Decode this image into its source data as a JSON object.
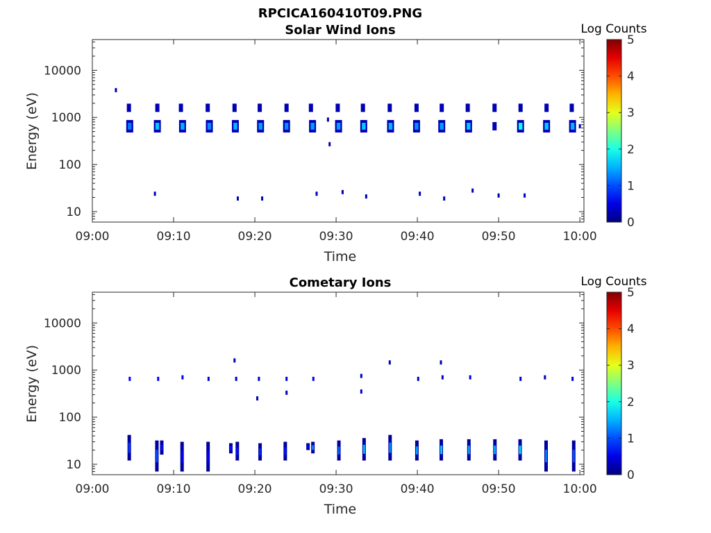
{
  "figure": {
    "file_title": "RPCICA160410T09.PNG"
  },
  "chart_data": [
    {
      "type": "heatmap",
      "title": "Solar Wind Ions",
      "xlabel": "Time",
      "ylabel": "Energy (eV)",
      "x_tick_labels": [
        "09:00",
        "09:10",
        "09:20",
        "09:30",
        "09:40",
        "09:50",
        "10:00"
      ],
      "x_range_minutes": [
        0,
        60.5
      ],
      "y_tick_labels": [
        "10",
        "100",
        "1000",
        "10000"
      ],
      "y_tick_values": [
        10,
        100,
        1000,
        10000
      ],
      "y_scale": "log",
      "y_range_ev": [
        6,
        45000
      ],
      "colorbar": {
        "label": "Log Counts",
        "ticks": [
          "0",
          "1",
          "2",
          "3",
          "4",
          "5"
        ],
        "range": [
          0,
          5
        ],
        "colormap": "jet"
      },
      "blobs": [
        {
          "t": 4.6,
          "e": 650,
          "lc": 1.2
        },
        {
          "t": 4.5,
          "e": 1600,
          "lc": 0.4
        },
        {
          "t": 8.0,
          "e": 650,
          "lc": 1.6
        },
        {
          "t": 8.0,
          "e": 1600,
          "lc": 0.4
        },
        {
          "t": 11.1,
          "e": 650,
          "lc": 1.5
        },
        {
          "t": 10.9,
          "e": 1600,
          "lc": 0.5
        },
        {
          "t": 14.4,
          "e": 650,
          "lc": 1.3
        },
        {
          "t": 14.2,
          "e": 1600,
          "lc": 0.4
        },
        {
          "t": 17.6,
          "e": 650,
          "lc": 1.5
        },
        {
          "t": 17.5,
          "e": 1600,
          "lc": 0.4
        },
        {
          "t": 20.7,
          "e": 650,
          "lc": 1.4
        },
        {
          "t": 20.6,
          "e": 1600,
          "lc": 0.5
        },
        {
          "t": 23.9,
          "e": 650,
          "lc": 1.3
        },
        {
          "t": 23.9,
          "e": 1600,
          "lc": 0.5
        },
        {
          "t": 27.1,
          "e": 650,
          "lc": 1.4
        },
        {
          "t": 26.9,
          "e": 1600,
          "lc": 0.4
        },
        {
          "t": 30.3,
          "e": 650,
          "lc": 1.4
        },
        {
          "t": 30.2,
          "e": 1600,
          "lc": 0.3
        },
        {
          "t": 33.4,
          "e": 650,
          "lc": 1.6
        },
        {
          "t": 33.3,
          "e": 1600,
          "lc": 0.4
        },
        {
          "t": 36.7,
          "e": 650,
          "lc": 1.5
        },
        {
          "t": 36.6,
          "e": 1600,
          "lc": 0.4
        },
        {
          "t": 39.9,
          "e": 650,
          "lc": 1.3
        },
        {
          "t": 39.9,
          "e": 1600,
          "lc": 0.4
        },
        {
          "t": 43.0,
          "e": 650,
          "lc": 1.4
        },
        {
          "t": 43.0,
          "e": 1600,
          "lc": 0.4
        },
        {
          "t": 46.3,
          "e": 650,
          "lc": 1.6
        },
        {
          "t": 46.2,
          "e": 1600,
          "lc": 0.4
        },
        {
          "t": 49.5,
          "e": 650,
          "lc": 0.5
        },
        {
          "t": 49.5,
          "e": 1600,
          "lc": 0.3
        },
        {
          "t": 52.7,
          "e": 650,
          "lc": 1.9
        },
        {
          "t": 52.7,
          "e": 1600,
          "lc": 0.4
        },
        {
          "t": 55.9,
          "e": 650,
          "lc": 1.6
        },
        {
          "t": 55.9,
          "e": 1600,
          "lc": 0.4
        },
        {
          "t": 59.1,
          "e": 650,
          "lc": 1.5
        },
        {
          "t": 59.0,
          "e": 1600,
          "lc": 0.4
        }
      ],
      "specks": [
        {
          "t": 2.9,
          "e": 3800,
          "lc": 0.2
        },
        {
          "t": 29.2,
          "e": 270,
          "lc": 0.2
        },
        {
          "t": 29.0,
          "e": 900,
          "lc": 0.2
        },
        {
          "t": 60.0,
          "e": 650,
          "lc": 0.2
        },
        {
          "t": 7.7,
          "e": 24,
          "lc": 0.3
        },
        {
          "t": 17.9,
          "e": 19,
          "lc": 0.3
        },
        {
          "t": 20.9,
          "e": 19,
          "lc": 0.3
        },
        {
          "t": 27.6,
          "e": 24,
          "lc": 0.3
        },
        {
          "t": 30.8,
          "e": 26,
          "lc": 0.3
        },
        {
          "t": 33.7,
          "e": 21,
          "lc": 0.3
        },
        {
          "t": 40.3,
          "e": 24,
          "lc": 0.3
        },
        {
          "t": 43.3,
          "e": 19,
          "lc": 0.3
        },
        {
          "t": 46.8,
          "e": 28,
          "lc": 0.3
        },
        {
          "t": 50.0,
          "e": 22,
          "lc": 0.2
        },
        {
          "t": 53.2,
          "e": 22,
          "lc": 0.3
        }
      ],
      "streaks": []
    },
    {
      "type": "heatmap",
      "title": "Cometary Ions",
      "xlabel": "Time",
      "ylabel": "Energy (eV)",
      "x_tick_labels": [
        "09:00",
        "09:10",
        "09:20",
        "09:30",
        "09:40",
        "09:50",
        "10:00"
      ],
      "x_range_minutes": [
        0,
        60.5
      ],
      "y_tick_labels": [
        "10",
        "100",
        "1000",
        "10000"
      ],
      "y_tick_values": [
        10,
        100,
        1000,
        10000
      ],
      "y_scale": "log",
      "y_range_ev": [
        6,
        45000
      ],
      "colorbar": {
        "label": "Log Counts",
        "ticks": [
          "0",
          "1",
          "2",
          "3",
          "4",
          "5"
        ],
        "range": [
          0,
          5
        ],
        "colormap": "jet"
      },
      "blobs": [],
      "specks": [
        {
          "t": 4.6,
          "e": 650,
          "lc": 0.6
        },
        {
          "t": 8.1,
          "e": 650,
          "lc": 0.6
        },
        {
          "t": 11.1,
          "e": 700,
          "lc": 0.5
        },
        {
          "t": 14.3,
          "e": 650,
          "lc": 0.4
        },
        {
          "t": 17.5,
          "e": 1600,
          "lc": 0.3
        },
        {
          "t": 17.7,
          "e": 650,
          "lc": 0.4
        },
        {
          "t": 20.5,
          "e": 650,
          "lc": 0.4
        },
        {
          "t": 20.3,
          "e": 250,
          "lc": 0.3
        },
        {
          "t": 23.9,
          "e": 650,
          "lc": 0.5
        },
        {
          "t": 23.9,
          "e": 330,
          "lc": 0.3
        },
        {
          "t": 27.2,
          "e": 650,
          "lc": 0.5
        },
        {
          "t": 33.1,
          "e": 750,
          "lc": 0.3
        },
        {
          "t": 33.1,
          "e": 350,
          "lc": 0.3
        },
        {
          "t": 36.6,
          "e": 1450,
          "lc": 0.3
        },
        {
          "t": 40.1,
          "e": 650,
          "lc": 0.3
        },
        {
          "t": 42.9,
          "e": 1450,
          "lc": 0.3
        },
        {
          "t": 43.1,
          "e": 700,
          "lc": 0.3
        },
        {
          "t": 46.5,
          "e": 700,
          "lc": 0.5
        },
        {
          "t": 52.7,
          "e": 650,
          "lc": 0.4
        },
        {
          "t": 55.7,
          "e": 700,
          "lc": 0.3
        },
        {
          "t": 59.1,
          "e": 650,
          "lc": 0.4
        }
      ],
      "streaks": [
        {
          "t": 4.5,
          "e_lo": 12,
          "e_hi": 42,
          "lc": 0.9
        },
        {
          "t": 7.9,
          "e_lo": 7,
          "e_hi": 32,
          "lc": 1.0
        },
        {
          "t": 8.5,
          "e_lo": 16,
          "e_hi": 32,
          "lc": 0.7
        },
        {
          "t": 11.0,
          "e_lo": 7,
          "e_hi": 30,
          "lc": 0.6
        },
        {
          "t": 14.2,
          "e_lo": 7,
          "e_hi": 30,
          "lc": 0.6
        },
        {
          "t": 17.0,
          "e_lo": 17,
          "e_hi": 28,
          "lc": 0.7
        },
        {
          "t": 17.8,
          "e_lo": 12,
          "e_hi": 30,
          "lc": 0.7
        },
        {
          "t": 20.6,
          "e_lo": 12,
          "e_hi": 28,
          "lc": 0.8
        },
        {
          "t": 23.7,
          "e_lo": 12,
          "e_hi": 30,
          "lc": 0.7
        },
        {
          "t": 26.5,
          "e_lo": 20,
          "e_hi": 28,
          "lc": 0.6
        },
        {
          "t": 27.1,
          "e_lo": 17,
          "e_hi": 30,
          "lc": 1.3
        },
        {
          "t": 30.3,
          "e_lo": 12,
          "e_hi": 32,
          "lc": 1.1
        },
        {
          "t": 33.4,
          "e_lo": 12,
          "e_hi": 36,
          "lc": 1.5
        },
        {
          "t": 36.6,
          "e_lo": 12,
          "e_hi": 42,
          "lc": 1.3
        },
        {
          "t": 39.9,
          "e_lo": 12,
          "e_hi": 32,
          "lc": 1.4
        },
        {
          "t": 42.9,
          "e_lo": 12,
          "e_hi": 34,
          "lc": 1.6
        },
        {
          "t": 46.3,
          "e_lo": 12,
          "e_hi": 34,
          "lc": 1.4
        },
        {
          "t": 49.5,
          "e_lo": 12,
          "e_hi": 34,
          "lc": 1.5
        },
        {
          "t": 52.6,
          "e_lo": 12,
          "e_hi": 34,
          "lc": 1.7
        },
        {
          "t": 55.8,
          "e_lo": 7,
          "e_hi": 32,
          "lc": 1.2
        },
        {
          "t": 59.2,
          "e_lo": 7,
          "e_hi": 32,
          "lc": 1.0
        }
      ]
    }
  ]
}
